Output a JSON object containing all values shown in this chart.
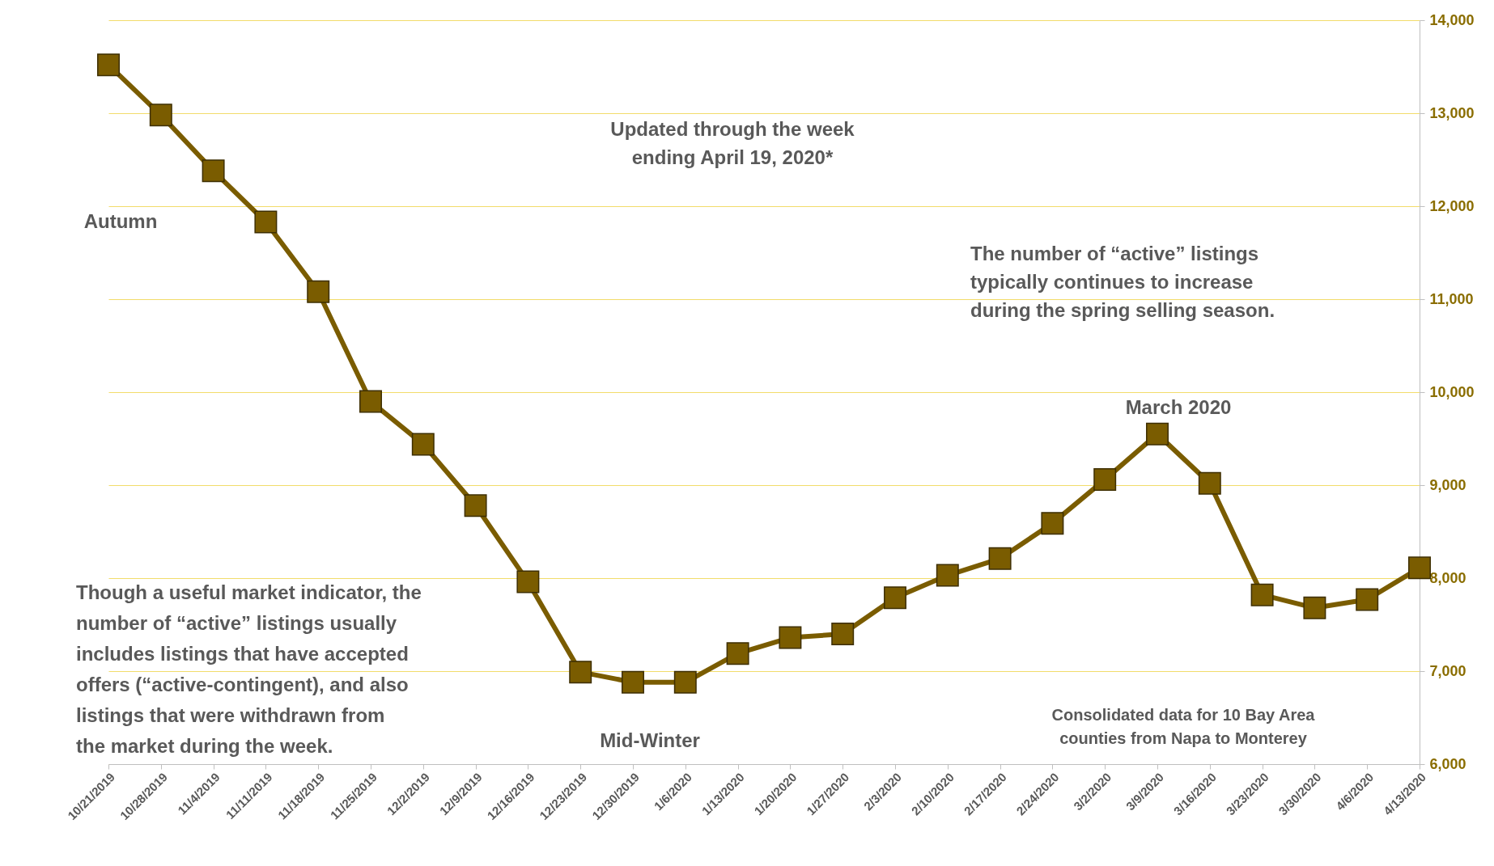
{
  "chart_data": {
    "type": "line",
    "categories": [
      "10/21/2019",
      "10/28/2019",
      "11/4/2019",
      "11/11/2019",
      "11/18/2019",
      "11/25/2019",
      "12/2/2019",
      "12/9/2019",
      "12/16/2019",
      "12/23/2019",
      "12/30/2019",
      "1/6/2020",
      "1/13/2020",
      "1/20/2020",
      "1/27/2020",
      "2/3/2020",
      "2/10/2020",
      "2/17/2020",
      "2/24/2020",
      "3/2/2020",
      "3/9/2020",
      "3/16/2020",
      "3/23/2020",
      "3/30/2020",
      "4/6/2020",
      "4/13/2020"
    ],
    "series": [
      {
        "color": "#7a5c00",
        "values": [
          13520,
          12980,
          12380,
          11830,
          11080,
          9900,
          9440,
          8780,
          7960,
          6990,
          6880,
          6880,
          7190,
          7360,
          7400,
          7790,
          8030,
          8210,
          8590,
          9060,
          9550,
          9020,
          7820,
          7680,
          7770,
          8110
        ]
      }
    ],
    "ylim": [
      6000,
      14000
    ],
    "yticks": [
      {
        "value": 6000,
        "label": "6,000"
      },
      {
        "value": 7000,
        "label": "7,000"
      },
      {
        "value": 8000,
        "label": "8,000"
      },
      {
        "value": 9000,
        "label": "9,000"
      },
      {
        "value": 10000,
        "label": "10,000"
      },
      {
        "value": 11000,
        "label": "11,000"
      },
      {
        "value": 12000,
        "label": "12,000"
      },
      {
        "value": 13000,
        "label": "13,000"
      },
      {
        "value": 14000,
        "label": "14,000"
      }
    ],
    "grid": "y",
    "marker": "square",
    "line_style": "solid",
    "annotations": [
      "Updated through the week\nending April 19, 2020*",
      "Autumn",
      "Mid-Winter",
      "March 2020",
      "The number of “active” listings\ntypically continues to increase\nduring the spring selling season.",
      "Though a useful market indicator, the\nnumber of “active” listings usually\nincludes listings that have accepted\noffers (“active-contingent), and also\nlistings that were withdrawn from\nthe market during the week.",
      "Consolidated data for 10 Bay Area\ncounties from Napa to Monterey"
    ]
  }
}
